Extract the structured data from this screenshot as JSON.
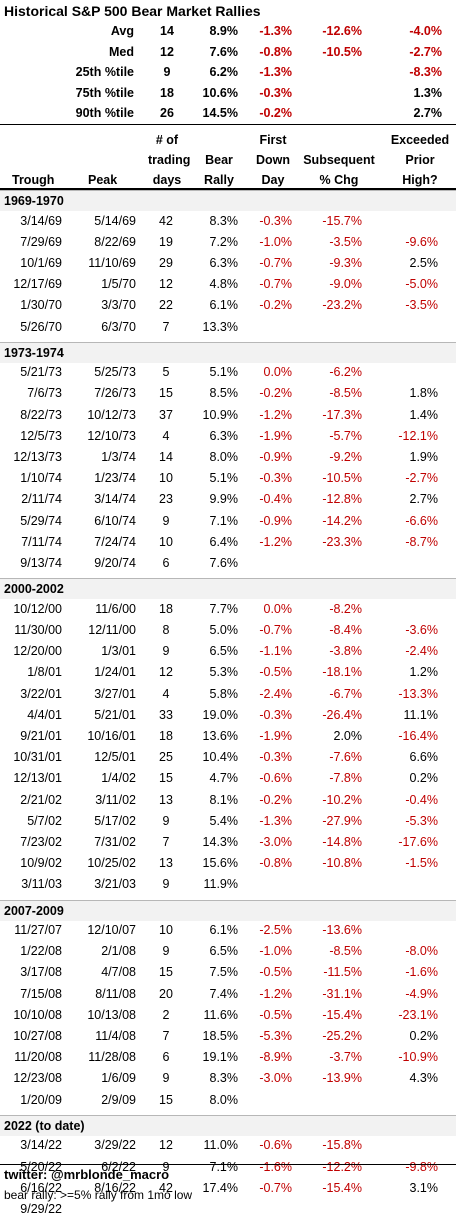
{
  "title": "Historical S&P 500 Bear Market Rallies",
  "summary": [
    {
      "label": "Avg",
      "days": "14",
      "rally": "8.9%",
      "first": "-1.3%",
      "subsequent": "-12.6%",
      "exceeded": "-4.0%"
    },
    {
      "label": "Med",
      "days": "12",
      "rally": "7.6%",
      "first": "-0.8%",
      "subsequent": "-10.5%",
      "exceeded": "-2.7%"
    },
    {
      "label": "25th %tile",
      "days": "9",
      "rally": "6.2%",
      "first": "-1.3%",
      "subsequent": "",
      "exceeded": "-8.3%"
    },
    {
      "label": "75th %tile",
      "days": "18",
      "rally": "10.6%",
      "first": "-0.3%",
      "subsequent": "",
      "exceeded": "1.3%"
    },
    {
      "label": "90th %tile",
      "days": "26",
      "rally": "14.5%",
      "first": "-0.2%",
      "subsequent": "",
      "exceeded": "2.7%"
    }
  ],
  "headers": {
    "trough": "Trough",
    "peak": "Peak",
    "days": [
      "# of",
      "trading",
      "days"
    ],
    "rally": [
      "Bear",
      "Rally"
    ],
    "first": [
      "First",
      "Down",
      "Day"
    ],
    "subsequent": [
      "Subsequent",
      "% Chg"
    ],
    "exceeded": [
      "Exceeded",
      "Prior",
      "High?"
    ]
  },
  "sections": [
    {
      "label": "1969-1970",
      "rows": [
        {
          "trough": "3/14/69",
          "peak": "5/14/69",
          "days": "42",
          "rally": "8.3%",
          "first": "-0.3%",
          "subsequent": "-15.7%",
          "exceeded": ""
        },
        {
          "trough": "7/29/69",
          "peak": "8/22/69",
          "days": "19",
          "rally": "7.2%",
          "first": "-1.0%",
          "subsequent": "-3.5%",
          "exceeded": "-9.6%"
        },
        {
          "trough": "10/1/69",
          "peak": "11/10/69",
          "days": "29",
          "rally": "6.3%",
          "first": "-0.7%",
          "subsequent": "-9.3%",
          "exceeded": "2.5%"
        },
        {
          "trough": "12/17/69",
          "peak": "1/5/70",
          "days": "12",
          "rally": "4.8%",
          "first": "-0.7%",
          "subsequent": "-9.0%",
          "exceeded": "-5.0%"
        },
        {
          "trough": "1/30/70",
          "peak": "3/3/70",
          "days": "22",
          "rally": "6.1%",
          "first": "-0.2%",
          "subsequent": "-23.2%",
          "exceeded": "-3.5%"
        },
        {
          "trough": "5/26/70",
          "peak": "6/3/70",
          "days": "7",
          "rally": "13.3%",
          "first": "",
          "subsequent": "",
          "exceeded": ""
        }
      ]
    },
    {
      "label": "1973-1974",
      "rows": [
        {
          "trough": "5/21/73",
          "peak": "5/25/73",
          "days": "5",
          "rally": "5.1%",
          "first": "0.0%",
          "subsequent": "-6.2%",
          "exceeded": ""
        },
        {
          "trough": "7/6/73",
          "peak": "7/26/73",
          "days": "15",
          "rally": "8.5%",
          "first": "-0.2%",
          "subsequent": "-8.5%",
          "exceeded": "1.8%"
        },
        {
          "trough": "8/22/73",
          "peak": "10/12/73",
          "days": "37",
          "rally": "10.9%",
          "first": "-1.2%",
          "subsequent": "-17.3%",
          "exceeded": "1.4%"
        },
        {
          "trough": "12/5/73",
          "peak": "12/10/73",
          "days": "4",
          "rally": "6.3%",
          "first": "-1.9%",
          "subsequent": "-5.7%",
          "exceeded": "-12.1%"
        },
        {
          "trough": "12/13/73",
          "peak": "1/3/74",
          "days": "14",
          "rally": "8.0%",
          "first": "-0.9%",
          "subsequent": "-9.2%",
          "exceeded": "1.9%"
        },
        {
          "trough": "1/10/74",
          "peak": "1/23/74",
          "days": "10",
          "rally": "5.1%",
          "first": "-0.3%",
          "subsequent": "-10.5%",
          "exceeded": "-2.7%"
        },
        {
          "trough": "2/11/74",
          "peak": "3/14/74",
          "days": "23",
          "rally": "9.9%",
          "first": "-0.4%",
          "subsequent": "-12.8%",
          "exceeded": "2.7%"
        },
        {
          "trough": "5/29/74",
          "peak": "6/10/74",
          "days": "9",
          "rally": "7.1%",
          "first": "-0.9%",
          "subsequent": "-14.2%",
          "exceeded": "-6.6%"
        },
        {
          "trough": "7/11/74",
          "peak": "7/24/74",
          "days": "10",
          "rally": "6.4%",
          "first": "-1.2%",
          "subsequent": "-23.3%",
          "exceeded": "-8.7%"
        },
        {
          "trough": "9/13/74",
          "peak": "9/20/74",
          "days": "6",
          "rally": "7.6%",
          "first": "",
          "subsequent": "",
          "exceeded": ""
        }
      ]
    },
    {
      "label": "2000-2002",
      "rows": [
        {
          "trough": "10/12/00",
          "peak": "11/6/00",
          "days": "18",
          "rally": "7.7%",
          "first": "0.0%",
          "subsequent": "-8.2%",
          "exceeded": ""
        },
        {
          "trough": "11/30/00",
          "peak": "12/11/00",
          "days": "8",
          "rally": "5.0%",
          "first": "-0.7%",
          "subsequent": "-8.4%",
          "exceeded": "-3.6%"
        },
        {
          "trough": "12/20/00",
          "peak": "1/3/01",
          "days": "9",
          "rally": "6.5%",
          "first": "-1.1%",
          "subsequent": "-3.8%",
          "exceeded": "-2.4%"
        },
        {
          "trough": "1/8/01",
          "peak": "1/24/01",
          "days": "12",
          "rally": "5.3%",
          "first": "-0.5%",
          "subsequent": "-18.1%",
          "exceeded": "1.2%"
        },
        {
          "trough": "3/22/01",
          "peak": "3/27/01",
          "days": "4",
          "rally": "5.8%",
          "first": "-2.4%",
          "subsequent": "-6.7%",
          "exceeded": "-13.3%"
        },
        {
          "trough": "4/4/01",
          "peak": "5/21/01",
          "days": "33",
          "rally": "19.0%",
          "first": "-0.3%",
          "subsequent": "-26.4%",
          "exceeded": "11.1%"
        },
        {
          "trough": "9/21/01",
          "peak": "10/16/01",
          "days": "18",
          "rally": "13.6%",
          "first": "-1.9%",
          "subsequent": "2.0%",
          "exceeded": "-16.4%"
        },
        {
          "trough": "10/31/01",
          "peak": "12/5/01",
          "days": "25",
          "rally": "10.4%",
          "first": "-0.3%",
          "subsequent": "-7.6%",
          "exceeded": "6.6%"
        },
        {
          "trough": "12/13/01",
          "peak": "1/4/02",
          "days": "15",
          "rally": "4.7%",
          "first": "-0.6%",
          "subsequent": "-7.8%",
          "exceeded": "0.2%"
        },
        {
          "trough": "2/21/02",
          "peak": "3/11/02",
          "days": "13",
          "rally": "8.1%",
          "first": "-0.2%",
          "subsequent": "-10.2%",
          "exceeded": "-0.4%"
        },
        {
          "trough": "5/7/02",
          "peak": "5/17/02",
          "days": "9",
          "rally": "5.4%",
          "first": "-1.3%",
          "subsequent": "-27.9%",
          "exceeded": "-5.3%"
        },
        {
          "trough": "7/23/02",
          "peak": "7/31/02",
          "days": "7",
          "rally": "14.3%",
          "first": "-3.0%",
          "subsequent": "-14.8%",
          "exceeded": "-17.6%"
        },
        {
          "trough": "10/9/02",
          "peak": "10/25/02",
          "days": "13",
          "rally": "15.6%",
          "first": "-0.8%",
          "subsequent": "-10.8%",
          "exceeded": "-1.5%"
        },
        {
          "trough": "3/11/03",
          "peak": "3/21/03",
          "days": "9",
          "rally": "11.9%",
          "first": "",
          "subsequent": "",
          "exceeded": ""
        }
      ]
    },
    {
      "label": "2007-2009",
      "rows": [
        {
          "trough": "11/27/07",
          "peak": "12/10/07",
          "days": "10",
          "rally": "6.1%",
          "first": "-2.5%",
          "subsequent": "-13.6%",
          "exceeded": ""
        },
        {
          "trough": "1/22/08",
          "peak": "2/1/08",
          "days": "9",
          "rally": "6.5%",
          "first": "-1.0%",
          "subsequent": "-8.5%",
          "exceeded": "-8.0%"
        },
        {
          "trough": "3/17/08",
          "peak": "4/7/08",
          "days": "15",
          "rally": "7.5%",
          "first": "-0.5%",
          "subsequent": "-11.5%",
          "exceeded": "-1.6%"
        },
        {
          "trough": "7/15/08",
          "peak": "8/11/08",
          "days": "20",
          "rally": "7.4%",
          "first": "-1.2%",
          "subsequent": "-31.1%",
          "exceeded": "-4.9%"
        },
        {
          "trough": "10/10/08",
          "peak": "10/13/08",
          "days": "2",
          "rally": "11.6%",
          "first": "-0.5%",
          "subsequent": "-15.4%",
          "exceeded": "-23.1%"
        },
        {
          "trough": "10/27/08",
          "peak": "11/4/08",
          "days": "7",
          "rally": "18.5%",
          "first": "-5.3%",
          "subsequent": "-25.2%",
          "exceeded": "0.2%"
        },
        {
          "trough": "11/20/08",
          "peak": "11/28/08",
          "days": "6",
          "rally": "19.1%",
          "first": "-8.9%",
          "subsequent": "-3.7%",
          "exceeded": "-10.9%"
        },
        {
          "trough": "12/23/08",
          "peak": "1/6/09",
          "days": "9",
          "rally": "8.3%",
          "first": "-3.0%",
          "subsequent": "-13.9%",
          "exceeded": "4.3%"
        },
        {
          "trough": "1/20/09",
          "peak": "2/9/09",
          "days": "15",
          "rally": "8.0%",
          "first": "",
          "subsequent": "",
          "exceeded": ""
        }
      ]
    },
    {
      "label": "2022 (to date)",
      "rows": [
        {
          "trough": "3/14/22",
          "peak": "3/29/22",
          "days": "12",
          "rally": "11.0%",
          "first": "-0.6%",
          "subsequent": "-15.8%",
          "exceeded": ""
        },
        {
          "trough": "5/20/22",
          "peak": "6/2/22",
          "days": "9",
          "rally": "7.1%",
          "first": "-1.6%",
          "subsequent": "-12.2%",
          "exceeded": "-9.8%"
        },
        {
          "trough": "6/16/22",
          "peak": "8/16/22",
          "days": "42",
          "rally": "17.4%",
          "first": "-0.7%",
          "subsequent": "-15.4%",
          "exceeded": "3.1%"
        },
        {
          "trough": "9/29/22",
          "peak": "",
          "days": "",
          "rally": "",
          "first": "",
          "subsequent": "",
          "exceeded": ""
        }
      ]
    }
  ],
  "footer": {
    "twitter": "twitter: @mrblonde_macro",
    "note": "bear rally: >=5% rally from 1mo low"
  },
  "colors": {
    "negative": "#c00000",
    "section_bg": "#f2f2f2"
  }
}
